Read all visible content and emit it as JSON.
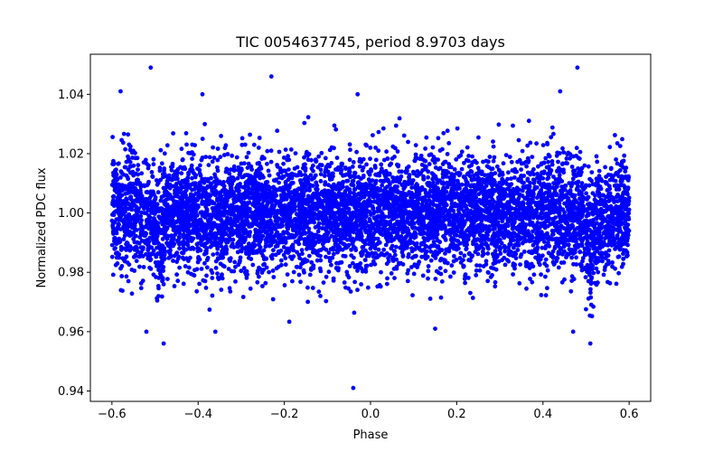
{
  "chart_data": {
    "type": "scatter",
    "title": "TIC 0054637745, period 8.9703 days",
    "xlabel": "Phase",
    "ylabel": "Normalized PDC flux",
    "xlim": [
      -0.65,
      0.65
    ],
    "ylim": [
      0.9365,
      1.0535
    ],
    "xticks": [
      -0.6,
      -0.4,
      -0.2,
      0.0,
      0.2,
      0.4,
      0.6
    ],
    "xtick_labels": [
      "−0.6",
      "−0.4",
      "−0.2",
      "0.0",
      "0.2",
      "0.4",
      "0.6"
    ],
    "yticks": [
      0.94,
      0.96,
      0.98,
      1.0,
      1.02,
      1.04
    ],
    "ytick_labels": [
      "0.94",
      "0.96",
      "0.98",
      "1.00",
      "1.02",
      "1.04"
    ],
    "grid": false,
    "marker_color": "#0000ff",
    "series": [
      {
        "x_range": [
          -0.6,
          0.6
        ],
        "baseline": 1.0,
        "typical_scatter_sd": 0.01,
        "eclipse_dips": [
          {
            "center": -0.49,
            "depth": 0.02
          },
          {
            "center": 0.51,
            "depth": 0.02
          }
        ],
        "outliers": [
          {
            "x": -0.51,
            "y": 1.049
          },
          {
            "x": 0.48,
            "y": 1.049
          },
          {
            "x": -0.04,
            "y": 0.941
          },
          {
            "x": -0.23,
            "y": 1.046
          },
          {
            "x": -0.58,
            "y": 1.041
          },
          {
            "x": -0.39,
            "y": 1.04
          },
          {
            "x": 0.44,
            "y": 1.041
          },
          {
            "x": -0.03,
            "y": 1.04
          },
          {
            "x": -0.48,
            "y": 0.956
          },
          {
            "x": 0.51,
            "y": 0.956
          },
          {
            "x": -0.52,
            "y": 0.96
          },
          {
            "x": -0.36,
            "y": 0.96
          },
          {
            "x": 0.47,
            "y": 0.96
          },
          {
            "x": 0.15,
            "y": 0.961
          }
        ]
      }
    ]
  }
}
